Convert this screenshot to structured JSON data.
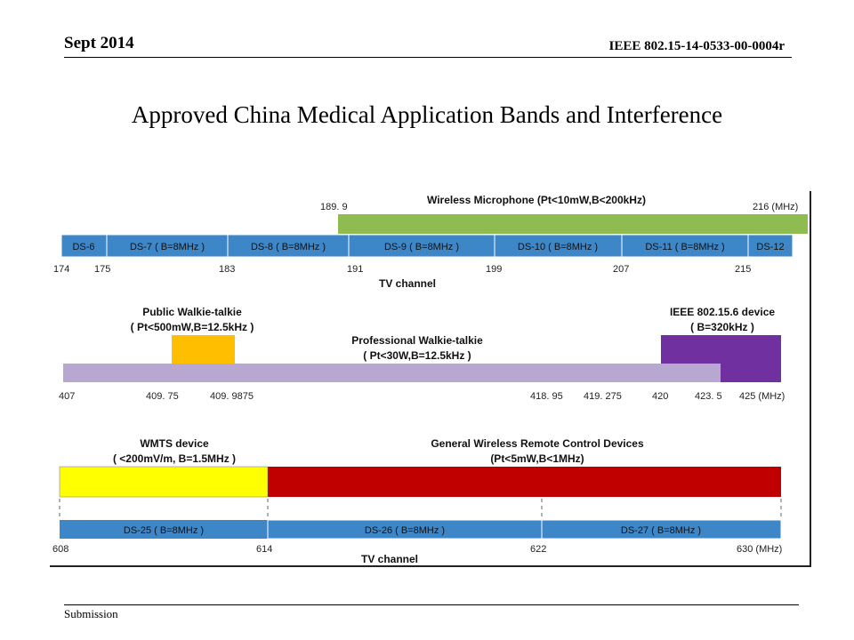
{
  "header": {
    "date": "Sept 2014",
    "doc_id": "IEEE 802.15-14-0533-00-0004r"
  },
  "title": "Approved China Medical Application Bands and Interference",
  "footer": {
    "left": "Submission"
  },
  "colors": {
    "tv_channel": "#3d86c8",
    "wireless_microphone": "#8fbc50",
    "public_walkie": "#ffbf00",
    "professional_walkie": "#b7a7d1",
    "ieee_802_15_6": "#7030a0",
    "wmts": "#ffff00",
    "remote_control": "#c00000"
  },
  "band1": {
    "mic_label": "Wireless Microphone (Pt<10mW,B<200kHz)",
    "mic_start": "189. 9",
    "mic_end": "216 (MHz)",
    "channels": [
      "DS-6",
      "DS-7 ( B=8MHz )",
      "DS-8 ( B=8MHz )",
      "DS-9 ( B=8MHz )",
      "DS-10 ( B=8MHz )",
      "DS-11 ( B=8MHz )",
      "DS-12"
    ],
    "ticks": [
      "174",
      "175",
      "183",
      "191",
      "199",
      "207",
      "215"
    ],
    "axis_label": "TV channel"
  },
  "band2": {
    "public_label_1": "Public Walkie-talkie",
    "public_label_2": "( Pt<500mW,B=12.5kHz )",
    "pro_label_1": "Professional Walkie-talkie",
    "pro_label_2": "( Pt<30W,B=12.5kHz )",
    "ieee_label_1": "IEEE 802.15.6 device",
    "ieee_label_2": "( B=320kHz )",
    "ticks": [
      "407",
      "409. 75",
      "409. 9875",
      "418. 95",
      "419. 275",
      "420",
      "423. 5",
      "425 (MHz)"
    ]
  },
  "band3": {
    "wmts_label_1": "WMTS device",
    "wmts_label_2": "( <200mV/m, B=1.5MHz )",
    "remote_label_1": "General Wireless Remote Control Devices",
    "remote_label_2": "(Pt<5mW,B<1MHz)",
    "channels": [
      "DS-25 ( B=8MHz )",
      "DS-26 ( B=8MHz )",
      "DS-27 ( B=8MHz )"
    ],
    "ticks": [
      "608",
      "614",
      "622",
      "630 (MHz)"
    ],
    "axis_label": "TV channel"
  }
}
